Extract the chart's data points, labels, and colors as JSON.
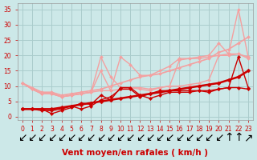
{
  "xlabel": "Vent moyen/en rafales ( km/h )",
  "background_color": "#cce8e8",
  "grid_color": "#aacccc",
  "xlim": [
    -0.5,
    23.5
  ],
  "ylim": [
    -1,
    37
  ],
  "xticks": [
    0,
    1,
    2,
    3,
    4,
    5,
    6,
    7,
    8,
    9,
    10,
    11,
    12,
    13,
    14,
    15,
    16,
    17,
    18,
    19,
    20,
    21,
    22,
    23
  ],
  "yticks": [
    0,
    5,
    10,
    15,
    20,
    25,
    30,
    35
  ],
  "series": [
    {
      "x": [
        0,
        1,
        2,
        3,
        4,
        5,
        6,
        7,
        8,
        9,
        10,
        11,
        12,
        13,
        14,
        15,
        16,
        17,
        18,
        19,
        20,
        21,
        22,
        23
      ],
      "y": [
        11,
        9.5,
        8,
        8,
        7,
        7.5,
        8,
        8.5,
        9,
        10,
        11,
        12,
        13,
        13.5,
        14,
        15,
        16,
        17,
        18,
        19,
        21,
        22,
        24,
        26
      ],
      "color": "#f4a0a0",
      "lw": 1.2,
      "marker": "D",
      "ms": 2.0
    },
    {
      "x": [
        0,
        1,
        2,
        3,
        4,
        5,
        6,
        7,
        8,
        9,
        10,
        11,
        12,
        13,
        14,
        15,
        16,
        17,
        18,
        19,
        20,
        21,
        22,
        23
      ],
      "y": [
        11,
        9,
        7.5,
        7.5,
        6.5,
        7,
        7.5,
        8,
        19.5,
        13,
        9.5,
        9.5,
        9,
        8.5,
        9.5,
        10,
        10,
        10.5,
        11,
        12,
        20,
        20.5,
        35,
        19.5
      ],
      "color": "#f4a0a0",
      "lw": 1.0,
      "marker": "D",
      "ms": 2.0
    },
    {
      "x": [
        0,
        1,
        2,
        3,
        4,
        5,
        6,
        7,
        8,
        9,
        10,
        11,
        12,
        13,
        14,
        15,
        16,
        17,
        18,
        19,
        20,
        21,
        22,
        23
      ],
      "y": [
        11,
        9,
        7.5,
        7.5,
        6.5,
        7,
        7.5,
        8,
        15,
        8.5,
        19.5,
        17,
        13.5,
        13.5,
        15,
        16.5,
        19,
        19,
        19.5,
        20,
        24,
        20.5,
        20.5,
        19.5
      ],
      "color": "#f4a0a0",
      "lw": 1.0,
      "marker": "D",
      "ms": 2.0
    },
    {
      "x": [
        0,
        1,
        2,
        3,
        4,
        5,
        6,
        7,
        8,
        9,
        10,
        11,
        12,
        13,
        14,
        15,
        16,
        17,
        18,
        19,
        20,
        21,
        22,
        23
      ],
      "y": [
        11,
        9,
        7.5,
        7.5,
        6.5,
        7,
        7.5,
        8,
        8.5,
        8.5,
        9,
        9.5,
        9.5,
        9,
        9.5,
        10,
        18.5,
        19,
        19,
        19.5,
        20,
        20,
        20.5,
        19
      ],
      "color": "#f4a0a0",
      "lw": 1.0,
      "marker": "D",
      "ms": 2.0
    },
    {
      "x": [
        0,
        1,
        2,
        3,
        4,
        5,
        6,
        7,
        8,
        9,
        10,
        11,
        12,
        13,
        14,
        15,
        16,
        17,
        18,
        19,
        20,
        21,
        22,
        23
      ],
      "y": [
        2.5,
        2.5,
        2.5,
        2.5,
        3,
        3.5,
        4,
        4.5,
        5,
        5.5,
        6,
        6.5,
        7,
        7.5,
        8,
        8.5,
        9,
        9.5,
        10,
        10.5,
        11,
        12,
        13,
        15
      ],
      "color": "#cc0000",
      "lw": 1.8,
      "marker": "D",
      "ms": 2.5
    },
    {
      "x": [
        0,
        1,
        2,
        3,
        4,
        5,
        6,
        7,
        8,
        9,
        10,
        11,
        12,
        13,
        14,
        15,
        16,
        17,
        18,
        19,
        20,
        21,
        22,
        23
      ],
      "y": [
        2.5,
        2.5,
        2.5,
        1,
        2,
        3,
        4.5,
        4,
        7,
        5.5,
        9.5,
        9.5,
        7,
        6,
        7,
        8,
        8,
        8,
        8.5,
        8,
        9,
        9.5,
        19.5,
        9.5
      ],
      "color": "#cc0000",
      "lw": 1.0,
      "marker": "D",
      "ms": 2.2
    },
    {
      "x": [
        0,
        1,
        2,
        3,
        4,
        5,
        6,
        7,
        8,
        9,
        10,
        11,
        12,
        13,
        14,
        15,
        16,
        17,
        18,
        19,
        20,
        21,
        22,
        23
      ],
      "y": [
        2.5,
        2.5,
        2,
        2,
        2.5,
        3.5,
        2.5,
        3.5,
        5.5,
        6.5,
        9,
        9,
        6.5,
        7.5,
        8.5,
        8.5,
        8.5,
        8.5,
        8.5,
        8.5,
        9,
        9.5,
        9.5,
        9
      ],
      "color": "#cc0000",
      "lw": 1.0,
      "marker": "D",
      "ms": 2.2
    }
  ],
  "tick_label_fontsize": 5.5,
  "tick_label_color": "#cc0000",
  "xlabel_fontsize": 7.5,
  "xlabel_color": "#cc0000"
}
